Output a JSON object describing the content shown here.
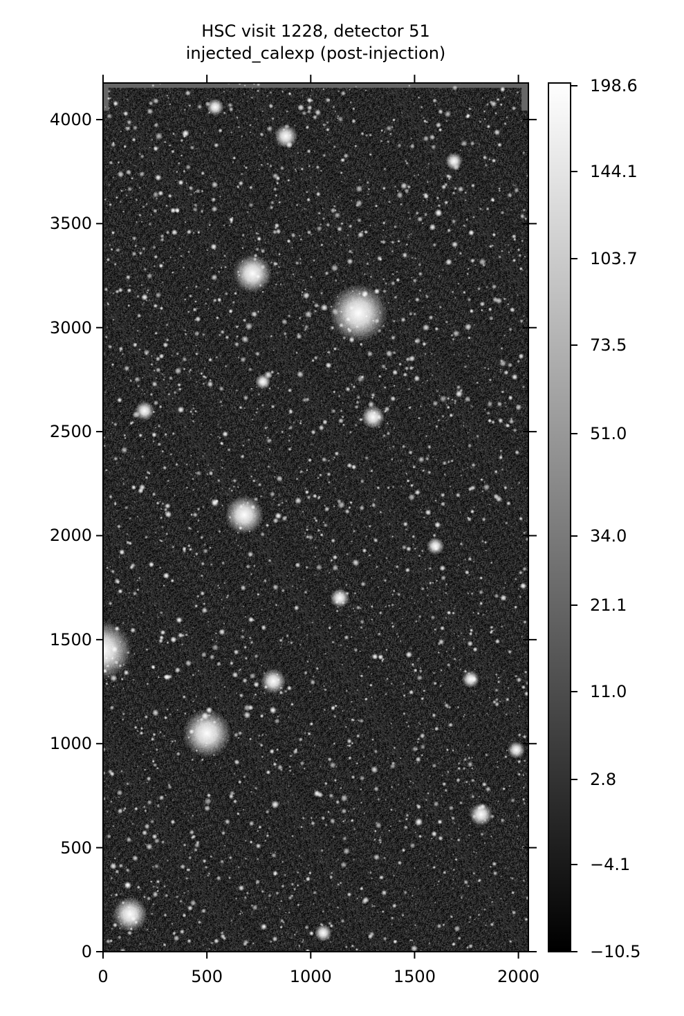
{
  "chart_data": {
    "type": "image",
    "title": "HSC visit 1228, detector 51",
    "subtitle": "injected_calexp (post-injection)",
    "colormap": "gray",
    "xlim": [
      0,
      2048
    ],
    "ylim": [
      0,
      4176
    ],
    "x_ticks": [
      "0",
      "500",
      "1000",
      "1500",
      "2000"
    ],
    "x_tick_values": [
      0,
      500,
      1000,
      1500,
      2000
    ],
    "y_ticks": [
      "0",
      "500",
      "1000",
      "1500",
      "2000",
      "2500",
      "3000",
      "3500",
      "4000"
    ],
    "y_tick_values": [
      0,
      500,
      1000,
      1500,
      2000,
      2500,
      3000,
      3500,
      4000
    ],
    "colorbar": {
      "range": [
        -10.5,
        198.6
      ],
      "scale": "asinh-like stretch",
      "ticks": [
        "198.6",
        "144.1",
        "103.7",
        "73.5",
        "51.0",
        "34.0",
        "21.1",
        "11.0",
        "2.8",
        "−4.1",
        "−10.5"
      ]
    }
  }
}
